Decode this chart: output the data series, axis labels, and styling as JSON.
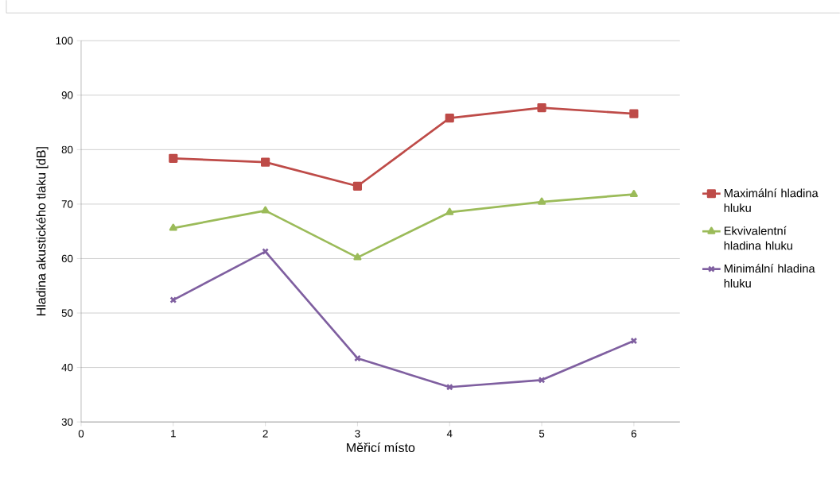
{
  "chart_data": {
    "type": "line",
    "xlabel": "Měřicí místo",
    "ylabel": "Hladina akustického tlaku [dB]",
    "x": [
      1,
      2,
      3,
      4,
      5,
      6
    ],
    "xlim": [
      0,
      6.5
    ],
    "xticks": [
      0,
      1,
      2,
      3,
      4,
      5,
      6
    ],
    "ylim": [
      30,
      100
    ],
    "yticks": [
      30,
      40,
      50,
      60,
      70,
      80,
      90,
      100
    ],
    "grid": "y",
    "legend": "right",
    "line_style": "solid",
    "series": [
      {
        "name": "Maximální hladina hluku",
        "color": "#be4b48",
        "marker": "square",
        "values": [
          78.4,
          77.7,
          73.3,
          85.8,
          87.7,
          86.6
        ]
      },
      {
        "name": "Ekvivalentní hladina hluku",
        "color": "#9bbb59",
        "marker": "triangle",
        "values": [
          65.6,
          68.8,
          60.2,
          68.5,
          70.4,
          71.8
        ]
      },
      {
        "name": "Minimální hladina hluku",
        "color": "#7f5fa0",
        "marker": "cross",
        "values": [
          52.4,
          61.3,
          41.7,
          36.4,
          37.7,
          44.9
        ]
      }
    ]
  }
}
